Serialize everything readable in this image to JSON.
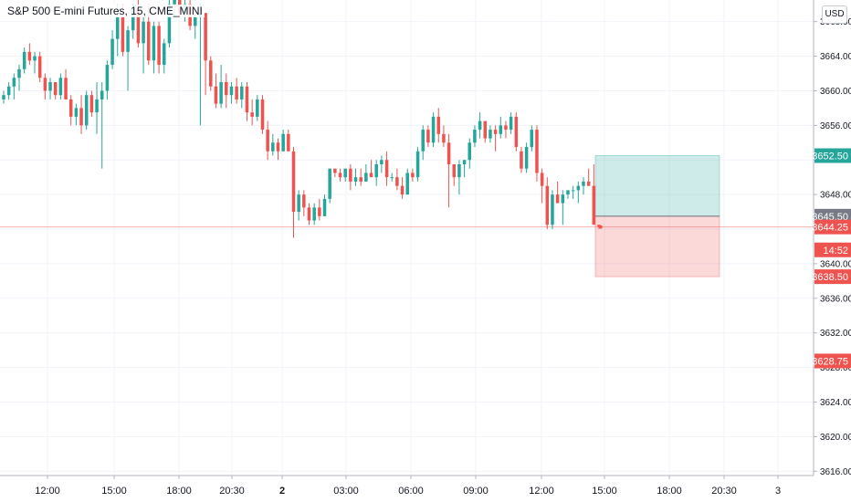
{
  "symbol_title": "S&P 500 E-mini Futures, 15, CME_MINI",
  "currency_button": "USD",
  "colors": {
    "up": "#26a69a",
    "down": "#ef5350",
    "grid": "#f0f3fa",
    "profit_zone": "rgba(38,166,154,0.22)",
    "loss_zone": "rgba(239,83,80,0.22)",
    "current_price_line": "#ef5350",
    "entry_line": "#787b86"
  },
  "chart_data": {
    "type": "candlestick",
    "title": "S&P 500 E-mini Futures, 15, CME_MINI",
    "y_axis": {
      "ticks": [
        "3616.00",
        "3620.00",
        "3624.00",
        "3628.00",
        "3632.00",
        "3636.00",
        "3640.00",
        "3644.00",
        "3648.00",
        "3652.00",
        "3656.00",
        "3660.00",
        "3664.00",
        "3668.00"
      ],
      "ylim": [
        3615.5,
        3670.5
      ],
      "grid": true
    },
    "x_axis": {
      "ticks": [
        {
          "label": "12:00",
          "bold": false
        },
        {
          "label": "15:00",
          "bold": false
        },
        {
          "label": "18:00",
          "bold": false
        },
        {
          "label": "20:30",
          "bold": false
        },
        {
          "label": "2",
          "bold": true
        },
        {
          "label": "03:00",
          "bold": false
        },
        {
          "label": "06:00",
          "bold": false
        },
        {
          "label": "09:00",
          "bold": false
        },
        {
          "label": "12:00",
          "bold": false
        },
        {
          "label": "15:00",
          "bold": false
        },
        {
          "label": "18:00",
          "bold": false
        },
        {
          "label": "20:30",
          "bold": false
        },
        {
          "label": "3",
          "bold": false
        }
      ],
      "grid": true
    },
    "candles": [
      [
        3659.0,
        3660.0,
        3658.5,
        3659.5
      ],
      [
        3659.5,
        3661.0,
        3659.0,
        3660.5
      ],
      [
        3660.5,
        3662.0,
        3659.0,
        3661.5
      ],
      [
        3661.5,
        3663.0,
        3660.0,
        3662.5
      ],
      [
        3662.5,
        3665.0,
        3662.0,
        3664.5
      ],
      [
        3664.5,
        3665.5,
        3663.0,
        3663.5
      ],
      [
        3663.5,
        3664.5,
        3662.0,
        3664.0
      ],
      [
        3664.0,
        3664.5,
        3661.0,
        3661.5
      ],
      [
        3661.5,
        3662.0,
        3659.0,
        3660.0
      ],
      [
        3660.0,
        3661.5,
        3659.0,
        3661.0
      ],
      [
        3661.0,
        3661.0,
        3659.0,
        3659.5
      ],
      [
        3659.5,
        3662.0,
        3659.0,
        3661.5
      ],
      [
        3661.5,
        3662.5,
        3659.0,
        3659.0
      ],
      [
        3659.0,
        3659.5,
        3656.0,
        3657.0
      ],
      [
        3657.0,
        3658.5,
        3656.0,
        3658.0
      ],
      [
        3658.0,
        3659.5,
        3655.0,
        3656.0
      ],
      [
        3656.0,
        3660.0,
        3655.5,
        3659.5
      ],
      [
        3659.5,
        3660.0,
        3657.0,
        3657.5
      ],
      [
        3657.5,
        3661.0,
        3655.0,
        3659.0
      ],
      [
        3659.0,
        3661.0,
        3651.0,
        3660.0
      ],
      [
        3660.0,
        3663.5,
        3659.0,
        3663.0
      ],
      [
        3663.0,
        3667.0,
        3662.5,
        3666.0
      ],
      [
        3666.0,
        3670.0,
        3664.0,
        3668.5
      ],
      [
        3668.5,
        3670.0,
        3664.0,
        3664.5
      ],
      [
        3664.5,
        3667.5,
        3660.0,
        3667.0
      ],
      [
        3667.0,
        3670.0,
        3666.0,
        3669.5
      ],
      [
        3669.5,
        3670.5,
        3665.0,
        3665.5
      ],
      [
        3665.5,
        3668.5,
        3662.0,
        3668.0
      ],
      [
        3668.0,
        3670.0,
        3663.0,
        3663.5
      ],
      [
        3663.5,
        3668.0,
        3662.0,
        3667.5
      ],
      [
        3667.5,
        3668.0,
        3662.0,
        3663.0
      ],
      [
        3663.0,
        3666.0,
        3662.0,
        3665.5
      ],
      [
        3665.5,
        3670.5,
        3665.0,
        3670.0
      ],
      [
        3670.0,
        3670.5,
        3668.5,
        3670.5
      ],
      [
        3670.5,
        3670.5,
        3668.5,
        3669.0
      ],
      [
        3669.0,
        3670.5,
        3668.0,
        3670.0
      ],
      [
        3670.0,
        3670.5,
        3667.0,
        3667.5
      ],
      [
        3667.5,
        3669.0,
        3666.0,
        3668.5
      ],
      [
        3668.5,
        3670.0,
        3656.0,
        3669.0
      ],
      [
        3669.0,
        3669.0,
        3659.5,
        3663.5
      ],
      [
        3663.5,
        3664.0,
        3660.0,
        3660.5
      ],
      [
        3660.5,
        3662.0,
        3658.0,
        3658.5
      ],
      [
        3658.5,
        3663.0,
        3658.0,
        3661.0
      ],
      [
        3661.0,
        3662.0,
        3658.0,
        3659.5
      ],
      [
        3659.5,
        3661.0,
        3658.5,
        3660.5
      ],
      [
        3660.5,
        3661.5,
        3658.5,
        3659.0
      ],
      [
        3659.0,
        3661.0,
        3658.0,
        3660.5
      ],
      [
        3660.5,
        3661.0,
        3656.5,
        3657.5
      ],
      [
        3657.5,
        3659.0,
        3656.0,
        3657.0
      ],
      [
        3657.0,
        3659.5,
        3656.5,
        3659.0
      ],
      [
        3659.0,
        3659.5,
        3655.0,
        3655.5
      ],
      [
        3655.5,
        3656.5,
        3652.0,
        3653.0
      ],
      [
        3653.0,
        3655.0,
        3652.5,
        3654.0
      ],
      [
        3654.0,
        3654.5,
        3652.0,
        3653.0
      ],
      [
        3653.0,
        3655.5,
        3653.0,
        3655.0
      ],
      [
        3655.0,
        3655.5,
        3653.0,
        3653.0
      ],
      [
        3653.0,
        3653.5,
        3643.0,
        3646.0
      ],
      [
        3646.0,
        3648.5,
        3645.0,
        3648.0
      ],
      [
        3648.0,
        3648.5,
        3645.5,
        3646.5
      ],
      [
        3646.5,
        3647.0,
        3644.5,
        3645.0
      ],
      [
        3645.0,
        3647.0,
        3644.5,
        3646.5
      ],
      [
        3646.5,
        3647.5,
        3645.0,
        3645.5
      ],
      [
        3645.5,
        3648.0,
        3645.5,
        3647.5
      ],
      [
        3647.5,
        3651.0,
        3647.0,
        3651.0
      ],
      [
        3651.0,
        3651.0,
        3650.0,
        3650.5
      ],
      [
        3650.5,
        3651.0,
        3649.5,
        3650.0
      ],
      [
        3650.0,
        3651.0,
        3649.5,
        3651.0
      ],
      [
        3651.0,
        3651.5,
        3648.5,
        3649.5
      ],
      [
        3649.5,
        3651.0,
        3649.0,
        3650.0
      ],
      [
        3650.0,
        3651.0,
        3649.0,
        3649.5
      ],
      [
        3649.5,
        3651.5,
        3649.5,
        3650.5
      ],
      [
        3650.5,
        3652.0,
        3650.0,
        3650.0
      ],
      [
        3650.0,
        3652.0,
        3649.0,
        3651.5
      ],
      [
        3651.5,
        3652.5,
        3650.5,
        3652.0
      ],
      [
        3652.0,
        3653.0,
        3649.0,
        3650.0
      ],
      [
        3650.0,
        3650.5,
        3649.5,
        3650.0
      ],
      [
        3650.0,
        3651.0,
        3648.5,
        3649.0
      ],
      [
        3649.0,
        3650.0,
        3647.5,
        3648.0
      ],
      [
        3648.0,
        3651.0,
        3648.0,
        3650.5
      ],
      [
        3650.5,
        3651.0,
        3649.5,
        3650.0
      ],
      [
        3650.0,
        3653.5,
        3649.5,
        3653.0
      ],
      [
        3653.0,
        3656.0,
        3652.0,
        3655.5
      ],
      [
        3655.5,
        3656.0,
        3653.5,
        3654.0
      ],
      [
        3654.0,
        3657.5,
        3653.5,
        3657.0
      ],
      [
        3657.0,
        3658.0,
        3654.0,
        3655.0
      ],
      [
        3655.0,
        3656.0,
        3653.5,
        3654.0
      ],
      [
        3654.0,
        3655.0,
        3646.5,
        3651.5
      ],
      [
        3651.5,
        3651.5,
        3649.0,
        3650.0
      ],
      [
        3650.0,
        3652.0,
        3648.0,
        3651.5
      ],
      [
        3651.5,
        3652.0,
        3650.0,
        3652.0
      ],
      [
        3652.0,
        3654.5,
        3651.0,
        3654.0
      ],
      [
        3654.0,
        3656.0,
        3653.5,
        3655.5
      ],
      [
        3655.5,
        3657.5,
        3654.5,
        3656.5
      ],
      [
        3656.5,
        3656.5,
        3654.0,
        3654.5
      ],
      [
        3654.5,
        3656.0,
        3654.0,
        3655.5
      ],
      [
        3655.5,
        3656.0,
        3653.0,
        3655.0
      ],
      [
        3655.0,
        3657.0,
        3654.5,
        3656.0
      ],
      [
        3656.0,
        3656.5,
        3654.5,
        3655.5
      ],
      [
        3655.5,
        3657.5,
        3655.0,
        3657.0
      ],
      [
        3657.0,
        3657.5,
        3653.0,
        3653.5
      ],
      [
        3653.0,
        3653.5,
        3650.5,
        3651.0
      ],
      [
        3651.0,
        3654.0,
        3650.5,
        3653.5
      ],
      [
        3653.5,
        3656.0,
        3653.0,
        3655.5
      ],
      [
        3655.5,
        3656.0,
        3649.5,
        3650.5
      ],
      [
        3650.5,
        3651.0,
        3647.0,
        3649.0
      ],
      [
        3649.0,
        3650.0,
        3644.0,
        3644.5
      ],
      [
        3644.5,
        3648.5,
        3644.0,
        3648.0
      ],
      [
        3648.0,
        3649.5,
        3647.0,
        3647.0
      ],
      [
        3647.0,
        3648.5,
        3644.5,
        3648.0
      ],
      [
        3648.0,
        3648.5,
        3647.5,
        3648.5
      ],
      [
        3648.5,
        3649.0,
        3647.5,
        3648.5
      ],
      [
        3648.5,
        3649.5,
        3647.0,
        3649.0
      ],
      [
        3649.0,
        3650.0,
        3648.0,
        3649.5
      ],
      [
        3649.5,
        3651.0,
        3649.0,
        3649.0
      ],
      [
        3649.0,
        3651.5,
        3644.5,
        3644.5
      ],
      [
        3644.5,
        3644.5,
        3644.0,
        3644.25
      ]
    ],
    "position_tool": {
      "target": 3652.5,
      "entry": 3645.5,
      "stop": 3638.5
    },
    "price_labels": [
      {
        "value": "3652.50",
        "price": 3652.5,
        "color": "#26a69a"
      },
      {
        "value": "3645.50",
        "price": 3645.5,
        "color": "#787b86"
      },
      {
        "value": "3644.25",
        "price": 3644.25,
        "color": "#ef5350"
      },
      {
        "value": "14:52",
        "price": 3641.6,
        "color": "#ef5350"
      },
      {
        "value": "3638.50",
        "price": 3638.5,
        "color": "#ef5350"
      },
      {
        "value": "3628.75",
        "price": 3628.75,
        "color": "#ef5350"
      }
    ],
    "current_price": 3644.25
  }
}
